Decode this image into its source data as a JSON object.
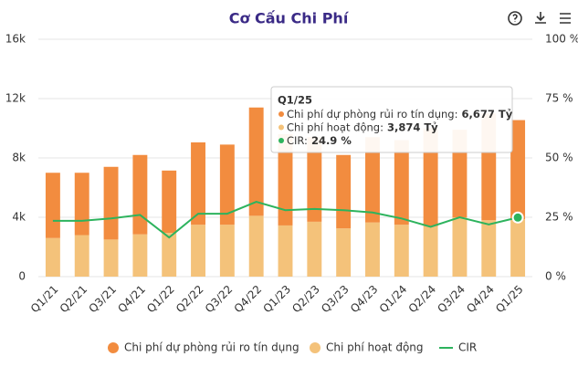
{
  "chart_data": {
    "type": "stacked-bar-line",
    "title": "Cơ Cấu Chi Phí",
    "categories": [
      "Q1/21",
      "Q2/21",
      "Q3/21",
      "Q4/21",
      "Q1/22",
      "Q2/22",
      "Q3/22",
      "Q4/22",
      "Q1/23",
      "Q2/23",
      "Q3/23",
      "Q4/23",
      "Q1/24",
      "Q2/24",
      "Q3/24",
      "Q4/24",
      "Q1/25"
    ],
    "series": [
      {
        "name": "Chi phí hoạt động",
        "color": "#f4c27a",
        "values": [
          2600,
          2800,
          2500,
          2850,
          2950,
          3500,
          3500,
          4100,
          3450,
          3700,
          3250,
          3650,
          3500,
          3400,
          4000,
          3800,
          3874
        ],
        "value_labels": [
          null,
          null,
          null,
          null,
          null,
          null,
          null,
          null,
          null,
          null,
          null,
          null,
          null,
          null,
          null,
          null,
          "3,874 Tỷ"
        ]
      },
      {
        "name": "Chi phí dự phòng rủi ro tín dụng",
        "color": "#f28c3f",
        "values": [
          4400,
          4200,
          4900,
          5350,
          4200,
          5550,
          5400,
          7300,
          6150,
          5700,
          4950,
          5750,
          5700,
          6600,
          5900,
          7200,
          6677
        ],
        "value_labels": [
          null,
          null,
          null,
          null,
          null,
          null,
          null,
          null,
          null,
          null,
          null,
          null,
          null,
          null,
          null,
          null,
          "6,677 Tỷ"
        ]
      },
      {
        "name": "CIR",
        "color": "#2db35d",
        "axis": "y2",
        "values": [
          23.5,
          23.5,
          24.5,
          26,
          16.5,
          26.5,
          26.5,
          31.5,
          28,
          28.5,
          28,
          27,
          24.5,
          21,
          25,
          22,
          24.9
        ],
        "value_labels": [
          null,
          null,
          null,
          null,
          null,
          null,
          null,
          null,
          null,
          null,
          null,
          null,
          null,
          null,
          null,
          null,
          "24.9 %"
        ]
      }
    ],
    "ylim": [
      0,
      16000
    ],
    "yticks": [
      0,
      {
        "value": 4000,
        "label": "4k"
      },
      {
        "value": 8000,
        "label": "8k"
      },
      {
        "value": 12000,
        "label": "12k"
      },
      {
        "value": 16000,
        "label": "16k"
      }
    ],
    "y2lim": [
      0,
      100
    ],
    "y2ticks": [
      {
        "value": 0,
        "label": "0 %"
      },
      {
        "value": 25,
        "label": "25 %"
      },
      {
        "value": 50,
        "label": "50 %"
      },
      {
        "value": 75,
        "label": "75 %"
      },
      {
        "value": 100,
        "label": "100 %"
      }
    ],
    "grid": true,
    "tooltip": {
      "title": "Q1/25",
      "labels": [
        "Chi phí dự phòng rủi ro tín dụng:",
        "Chi phí hoạt động:",
        "CIR:"
      ]
    }
  }
}
